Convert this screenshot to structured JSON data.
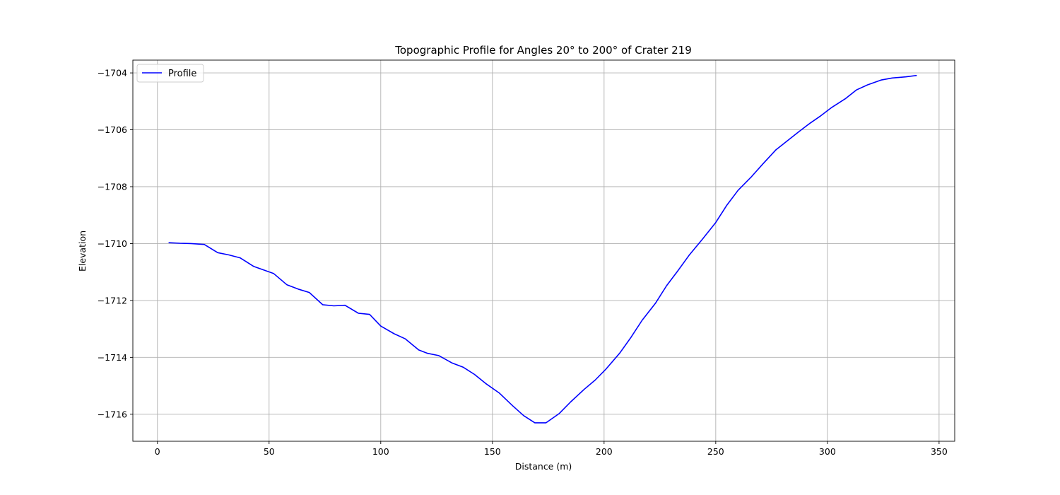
{
  "chart_data": {
    "type": "line",
    "title": "Topographic Profile for Angles 20° to 200° of Crater 219",
    "xlabel": "Distance (m)",
    "ylabel": "Elevation",
    "xlim": [
      -11,
      357
    ],
    "ylim": [
      -1716.95,
      -1703.55
    ],
    "xticks": [
      0,
      50,
      100,
      150,
      200,
      250,
      300,
      350
    ],
    "yticks": [
      -1704,
      -1706,
      -1708,
      -1710,
      -1712,
      -1714,
      -1716
    ],
    "grid": true,
    "legend": {
      "placement": "top-left",
      "entries": [
        "Profile"
      ]
    },
    "series": [
      {
        "name": "Profile",
        "color": "#0000ff",
        "x": [
          5,
          10,
          15,
          21,
          27,
          32,
          37,
          43,
          48,
          52,
          58,
          63,
          68,
          74,
          79,
          84,
          90,
          95,
          100,
          106,
          111,
          117,
          121,
          126,
          132,
          137,
          142,
          147,
          153,
          159,
          164,
          169,
          174,
          180,
          185,
          191,
          196,
          201,
          207,
          212,
          217,
          223,
          228,
          233,
          238,
          244,
          250,
          255,
          260,
          266,
          271,
          277,
          282,
          287,
          292,
          297,
          302,
          308,
          313,
          318,
          324,
          329,
          335,
          340
        ],
        "y": [
          -1709.97,
          -1709.99,
          -1710.0,
          -1710.03,
          -1710.32,
          -1710.4,
          -1710.5,
          -1710.8,
          -1710.94,
          -1711.05,
          -1711.45,
          -1711.6,
          -1711.72,
          -1712.15,
          -1712.19,
          -1712.17,
          -1712.45,
          -1712.49,
          -1712.9,
          -1713.17,
          -1713.35,
          -1713.74,
          -1713.86,
          -1713.94,
          -1714.2,
          -1714.35,
          -1714.6,
          -1714.92,
          -1715.25,
          -1715.7,
          -1716.05,
          -1716.3,
          -1716.3,
          -1715.97,
          -1715.57,
          -1715.13,
          -1714.8,
          -1714.4,
          -1713.85,
          -1713.3,
          -1712.7,
          -1712.1,
          -1711.48,
          -1710.96,
          -1710.42,
          -1709.85,
          -1709.26,
          -1708.65,
          -1708.13,
          -1707.65,
          -1707.21,
          -1706.7,
          -1706.39,
          -1706.08,
          -1705.78,
          -1705.51,
          -1705.21,
          -1704.91,
          -1704.6,
          -1704.42,
          -1704.25,
          -1704.18,
          -1704.14,
          -1704.09
        ]
      }
    ]
  }
}
